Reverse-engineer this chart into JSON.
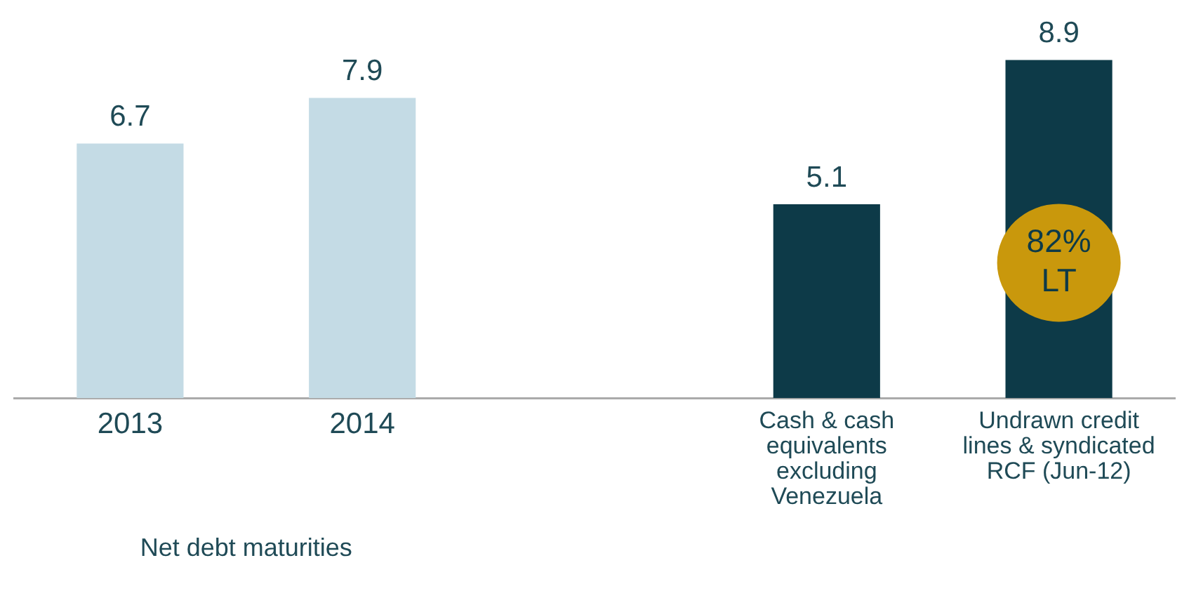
{
  "chart_data": {
    "type": "bar",
    "categories": [
      "2013",
      "2014",
      null,
      "Cash & cash equivalents excluding Venezuela",
      "Undrawn credit lines & syndicated RCF (Jun-12)"
    ],
    "values": [
      6.7,
      7.9,
      null,
      5.1,
      8.9
    ],
    "colors": [
      "#c4dbe5",
      "#c4dbe5",
      "#c4dbe5",
      "#0d3a48",
      "#0d3a48"
    ],
    "data_labels": true,
    "grid": false,
    "legend": false,
    "annotations": [
      "Net debt maturities",
      "82% LT"
    ]
  }
}
